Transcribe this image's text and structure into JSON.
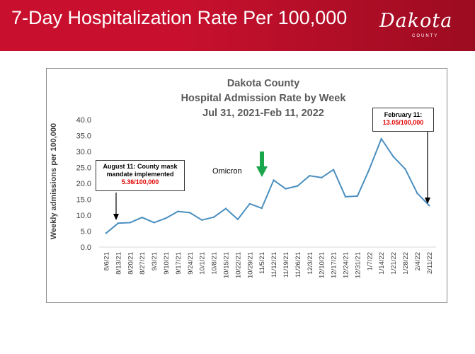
{
  "header": {
    "title": "7-Day Hospitalization Rate Per 100,000",
    "logo_text": "Dakota",
    "logo_subtext": "COUNTY"
  },
  "colors": {
    "banner": "#c8102e",
    "line": "#4a8fbf",
    "arrow_green": "#1aa64b",
    "highlight_red": "#e00000"
  },
  "chart_data": {
    "type": "line",
    "title": [
      "Dakota County",
      "Hospital Admission Rate by Week",
      "Jul 31, 2021-Feb 11, 2022"
    ],
    "xlabel": "",
    "ylabel": "Weekly admissions  per 100,000",
    "ylim": [
      0,
      40
    ],
    "yticks": [
      "0.0",
      "5.0",
      "10.0",
      "15.0",
      "20.0",
      "25.0",
      "30.0",
      "35.0",
      "40.0"
    ],
    "grid": false,
    "categories": [
      "8/6/21",
      "8/13/21",
      "8/20/21",
      "8/27/21",
      "9/3/21",
      "9/10/21",
      "9/17/21",
      "9/24/21",
      "10/1/21",
      "10/8/21",
      "10/15/21",
      "10/22/21",
      "10/29/21",
      "11/5/21",
      "11/12/21",
      "11/19/21",
      "11/26/21",
      "12/3/21",
      "12/10/21",
      "12/17/21",
      "12/24/21",
      "12/31/21",
      "1/7/22",
      "1/14/22",
      "1/21/22",
      "1/28/22",
      "2/4/22",
      "2/11/22"
    ],
    "series": [
      {
        "name": "Weekly admissions per 100,000",
        "values": [
          4.4,
          7.5,
          7.7,
          9.3,
          7.7,
          9.1,
          11.2,
          10.8,
          8.5,
          9.4,
          12.1,
          8.7,
          13.6,
          12.2,
          21.0,
          18.3,
          19.2,
          22.4,
          21.8,
          24.3,
          15.8,
          16.0,
          24.5,
          34.0,
          28.4,
          24.5,
          16.9,
          13.05
        ]
      }
    ],
    "annotations": {
      "mask_box": {
        "line1": "August 11: County mask",
        "line2": "mandate implemented",
        "value": "5.36/100,000",
        "category": "8/13/21"
      },
      "feb_box": {
        "line1": "February 11:",
        "value": "13.05/100,000",
        "category": "2/11/22"
      },
      "omicron_label": "Omicron",
      "omicron_category": "11/5/21"
    }
  }
}
